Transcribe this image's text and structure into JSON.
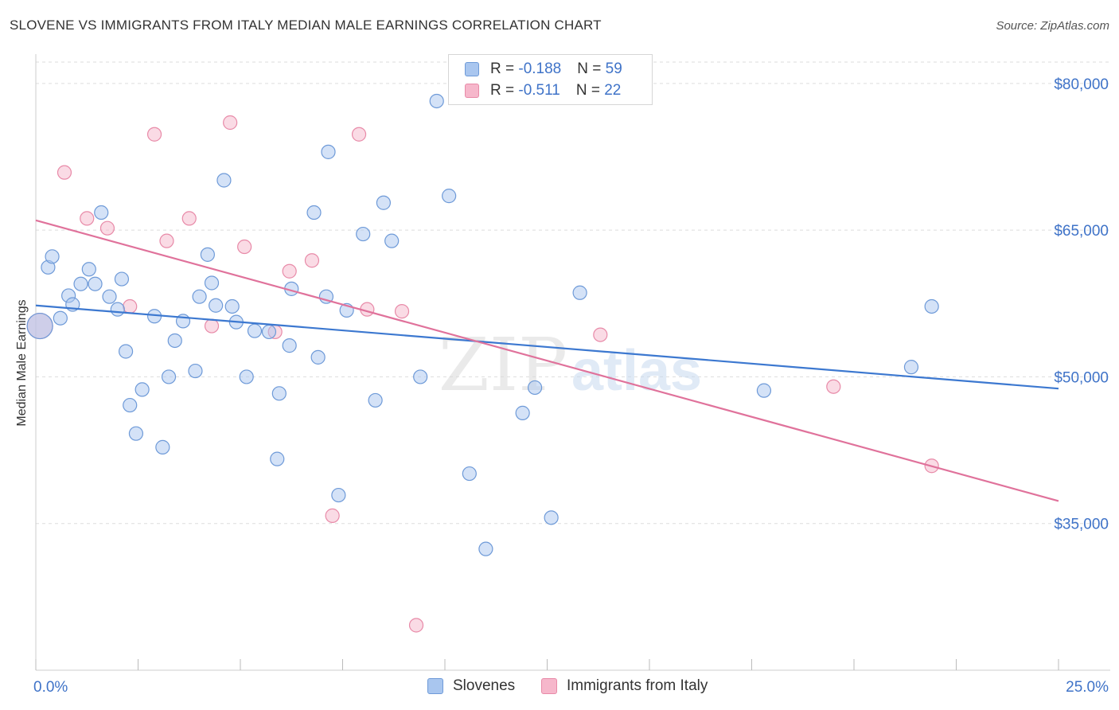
{
  "title": "SLOVENE VS IMMIGRANTS FROM ITALY MEDIAN MALE EARNINGS CORRELATION CHART",
  "source": "Source: ZipAtlas.com",
  "watermark": {
    "zip": "ZIP",
    "atlas": "atlas"
  },
  "legend_stats": [
    {
      "r_label": "R = ",
      "r_value": "-0.188",
      "n_label": "N = ",
      "n_value": "59"
    },
    {
      "r_label": "R = ",
      "r_value": "-0.511",
      "n_label": "N = ",
      "n_value": "22"
    }
  ],
  "chart_data": {
    "type": "scatter",
    "title": "SLOVENE VS IMMIGRANTS FROM ITALY MEDIAN MALE EARNINGS CORRELATION CHART",
    "xlabel": "",
    "ylabel": "Median Male Earnings",
    "xlim": [
      0,
      25
    ],
    "ylim": [
      20000,
      83000
    ],
    "x_tick_labels": [
      "0.0%",
      "25.0%"
    ],
    "y_ticks": [
      35000,
      50000,
      65000,
      80000
    ],
    "y_tick_labels": [
      "$35,000",
      "$50,000",
      "$65,000",
      "$80,000"
    ],
    "legend_position": "bottom",
    "series": [
      {
        "name": "Slovenes",
        "color": "#a9c6ef",
        "edge": "#6e9ad8",
        "line_color": "#3c78d0",
        "trend": [
          [
            0,
            57300
          ],
          [
            25,
            48800
          ]
        ],
        "points": [
          [
            0.1,
            55200
          ],
          [
            0.3,
            61200
          ],
          [
            0.4,
            62300
          ],
          [
            0.6,
            56000
          ],
          [
            0.8,
            58300
          ],
          [
            0.9,
            57400
          ],
          [
            1.1,
            59500
          ],
          [
            1.3,
            61000
          ],
          [
            1.45,
            59500
          ],
          [
            1.6,
            66800
          ],
          [
            1.8,
            58200
          ],
          [
            2.0,
            56900
          ],
          [
            2.1,
            60000
          ],
          [
            2.2,
            52600
          ],
          [
            2.3,
            47100
          ],
          [
            2.45,
            44200
          ],
          [
            2.6,
            48700
          ],
          [
            2.9,
            56200
          ],
          [
            3.1,
            42800
          ],
          [
            3.25,
            50000
          ],
          [
            3.4,
            53700
          ],
          [
            3.6,
            55700
          ],
          [
            3.9,
            50600
          ],
          [
            4.0,
            58200
          ],
          [
            4.2,
            62500
          ],
          [
            4.3,
            59600
          ],
          [
            4.4,
            57300
          ],
          [
            4.6,
            70100
          ],
          [
            4.8,
            57200
          ],
          [
            4.9,
            55600
          ],
          [
            5.15,
            50000
          ],
          [
            5.35,
            54700
          ],
          [
            5.7,
            54600
          ],
          [
            5.9,
            41600
          ],
          [
            5.95,
            48300
          ],
          [
            6.2,
            53200
          ],
          [
            6.25,
            59000
          ],
          [
            6.8,
            66800
          ],
          [
            6.9,
            52000
          ],
          [
            7.1,
            58200
          ],
          [
            7.15,
            73000
          ],
          [
            7.4,
            37900
          ],
          [
            7.6,
            56800
          ],
          [
            8.0,
            64600
          ],
          [
            8.3,
            47600
          ],
          [
            8.5,
            67800
          ],
          [
            8.7,
            63900
          ],
          [
            9.4,
            50000
          ],
          [
            9.8,
            78200
          ],
          [
            10.1,
            68500
          ],
          [
            10.6,
            40100
          ],
          [
            11.0,
            32400
          ],
          [
            11.9,
            46300
          ],
          [
            12.2,
            48900
          ],
          [
            12.6,
            35600
          ],
          [
            13.3,
            58600
          ],
          [
            17.8,
            48600
          ],
          [
            21.4,
            51000
          ],
          [
            21.9,
            57200
          ]
        ]
      },
      {
        "name": "Immigrants from Italy",
        "color": "#f6b7cb",
        "edge": "#e88aa8",
        "line_color": "#e0729b",
        "trend": [
          [
            0,
            66000
          ],
          [
            25,
            37300
          ]
        ],
        "points": [
          [
            0.1,
            55200
          ],
          [
            0.7,
            70900
          ],
          [
            1.25,
            66200
          ],
          [
            1.75,
            65200
          ],
          [
            2.3,
            57200
          ],
          [
            2.9,
            74800
          ],
          [
            3.2,
            63900
          ],
          [
            3.75,
            66200
          ],
          [
            4.3,
            55200
          ],
          [
            4.75,
            76000
          ],
          [
            5.1,
            63300
          ],
          [
            5.85,
            54600
          ],
          [
            6.2,
            60800
          ],
          [
            6.75,
            61900
          ],
          [
            7.25,
            35800
          ],
          [
            7.9,
            74800
          ],
          [
            8.1,
            56900
          ],
          [
            8.95,
            56700
          ],
          [
            9.3,
            24600
          ],
          [
            13.8,
            54300
          ],
          [
            19.5,
            49000
          ],
          [
            21.9,
            40900
          ]
        ]
      }
    ]
  }
}
